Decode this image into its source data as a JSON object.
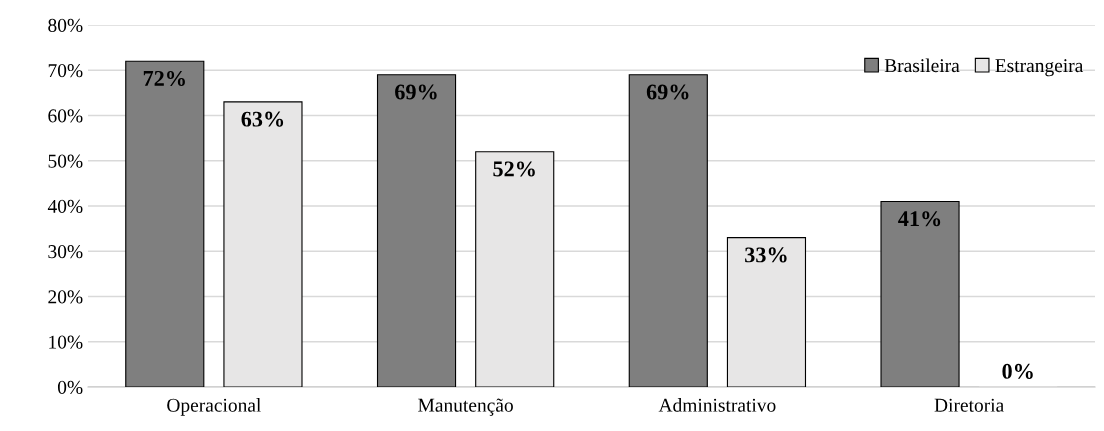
{
  "chart_data": {
    "type": "bar",
    "categories": [
      "Operacional",
      "Manutenção",
      "Administrativo",
      "Diretoria"
    ],
    "series": [
      {
        "name": "Brasileira",
        "color": "#7f7f7f",
        "values": [
          72,
          69,
          69,
          41
        ],
        "value_labels": [
          "72%",
          "69%",
          "69%",
          "41%"
        ]
      },
      {
        "name": "Estrangeira",
        "color": "#e7e6e6",
        "values": [
          63,
          52,
          33,
          0
        ],
        "value_labels": [
          "63%",
          "52%",
          "33%",
          "0%"
        ]
      }
    ],
    "ylim": [
      0,
      80
    ],
    "yticks": [
      {
        "value": 0,
        "label": "0%"
      },
      {
        "value": 10,
        "label": "10%"
      },
      {
        "value": 20,
        "label": "20%"
      },
      {
        "value": 30,
        "label": "30%"
      },
      {
        "value": 40,
        "label": "40%"
      },
      {
        "value": 50,
        "label": "50%"
      },
      {
        "value": 60,
        "label": "60%"
      },
      {
        "value": 70,
        "label": "70%"
      },
      {
        "value": 80,
        "label": "80%"
      }
    ],
    "grid": "y",
    "legend": "top right"
  }
}
